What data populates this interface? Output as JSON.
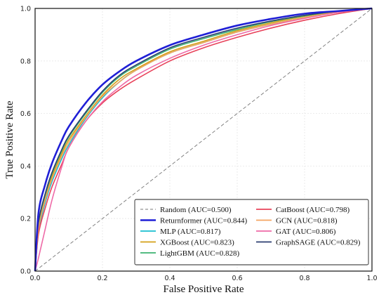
{
  "chart_data": {
    "type": "line",
    "xlabel": "False Positive Rate",
    "ylabel": "True Positive Rate",
    "xlim": [
      0,
      1
    ],
    "ylim": [
      0,
      1
    ],
    "xticks": [
      "0.0",
      "0.2",
      "0.4",
      "0.6",
      "0.8",
      "1.0"
    ],
    "yticks": [
      "0.0",
      "0.2",
      "0.4",
      "0.6",
      "0.8",
      "1.0"
    ],
    "grid": true,
    "legend_position": "bottom-right",
    "series": [
      {
        "name": "Random (AUC=0.500)",
        "color": "#777777",
        "style": "dashed",
        "x": [
          0,
          1
        ],
        "y": [
          0,
          1
        ]
      },
      {
        "name": "Returnformer (AUC=0.844)",
        "color": "#1f1fd6",
        "style": "solid-thick",
        "x": [
          0,
          0.01,
          0.03,
          0.05,
          0.08,
          0.1,
          0.15,
          0.2,
          0.25,
          0.3,
          0.4,
          0.5,
          0.6,
          0.7,
          0.8,
          0.9,
          1.0
        ],
        "y": [
          0,
          0.22,
          0.33,
          0.41,
          0.5,
          0.55,
          0.64,
          0.71,
          0.76,
          0.8,
          0.86,
          0.9,
          0.935,
          0.96,
          0.98,
          0.99,
          1.0
        ]
      },
      {
        "name": "MLP (AUC=0.817)",
        "color": "#17becf",
        "style": "solid",
        "x": [
          0,
          0.01,
          0.03,
          0.05,
          0.08,
          0.1,
          0.15,
          0.2,
          0.25,
          0.3,
          0.4,
          0.5,
          0.6,
          0.7,
          0.8,
          0.9,
          1.0
        ],
        "y": [
          0,
          0.15,
          0.26,
          0.34,
          0.43,
          0.48,
          0.58,
          0.66,
          0.72,
          0.765,
          0.83,
          0.87,
          0.91,
          0.94,
          0.965,
          0.985,
          1.0
        ]
      },
      {
        "name": "XGBoost (AUC=0.823)",
        "color": "#d4a017",
        "style": "solid",
        "x": [
          0,
          0.01,
          0.03,
          0.05,
          0.08,
          0.1,
          0.15,
          0.2,
          0.25,
          0.3,
          0.4,
          0.5,
          0.6,
          0.7,
          0.8,
          0.9,
          1.0
        ],
        "y": [
          0,
          0.17,
          0.28,
          0.36,
          0.45,
          0.5,
          0.59,
          0.67,
          0.73,
          0.77,
          0.835,
          0.875,
          0.915,
          0.945,
          0.97,
          0.988,
          1.0
        ]
      },
      {
        "name": "LightGBM (AUC=0.828)",
        "color": "#3cb371",
        "style": "solid",
        "x": [
          0,
          0.01,
          0.03,
          0.05,
          0.08,
          0.1,
          0.15,
          0.2,
          0.25,
          0.3,
          0.4,
          0.5,
          0.6,
          0.7,
          0.8,
          0.9,
          1.0
        ],
        "y": [
          0,
          0.18,
          0.29,
          0.37,
          0.46,
          0.51,
          0.6,
          0.68,
          0.74,
          0.78,
          0.845,
          0.885,
          0.92,
          0.95,
          0.972,
          0.99,
          1.0
        ]
      },
      {
        "name": "CatBoost (AUC=0.798)",
        "color": "#e8425a",
        "style": "solid",
        "x": [
          0,
          0.01,
          0.03,
          0.05,
          0.08,
          0.1,
          0.15,
          0.2,
          0.25,
          0.3,
          0.4,
          0.5,
          0.6,
          0.7,
          0.8,
          0.9,
          1.0
        ],
        "y": [
          0,
          0.14,
          0.24,
          0.32,
          0.41,
          0.47,
          0.57,
          0.64,
          0.69,
          0.73,
          0.8,
          0.85,
          0.89,
          0.925,
          0.955,
          0.98,
          1.0
        ]
      },
      {
        "name": "GCN (AUC=0.818)",
        "color": "#f4a460",
        "style": "solid",
        "x": [
          0,
          0.01,
          0.03,
          0.05,
          0.08,
          0.1,
          0.15,
          0.2,
          0.25,
          0.3,
          0.4,
          0.5,
          0.6,
          0.7,
          0.8,
          0.9,
          1.0
        ],
        "y": [
          0,
          0.16,
          0.27,
          0.35,
          0.44,
          0.49,
          0.585,
          0.665,
          0.72,
          0.765,
          0.83,
          0.87,
          0.91,
          0.94,
          0.965,
          0.985,
          1.0
        ]
      },
      {
        "name": "GAT (AUC=0.806)",
        "color": "#ee6aa7",
        "style": "solid",
        "x": [
          0,
          0.01,
          0.03,
          0.05,
          0.08,
          0.1,
          0.15,
          0.2,
          0.25,
          0.3,
          0.4,
          0.5,
          0.6,
          0.7,
          0.8,
          0.9,
          1.0
        ],
        "y": [
          0,
          0.05,
          0.16,
          0.27,
          0.4,
          0.47,
          0.57,
          0.645,
          0.7,
          0.745,
          0.81,
          0.86,
          0.9,
          0.935,
          0.962,
          0.985,
          1.0
        ]
      },
      {
        "name": "GraphSAGE (AUC=0.829)",
        "color": "#2c3e70",
        "style": "solid",
        "x": [
          0,
          0.01,
          0.03,
          0.05,
          0.08,
          0.1,
          0.15,
          0.2,
          0.25,
          0.3,
          0.4,
          0.5,
          0.6,
          0.7,
          0.8,
          0.9,
          1.0
        ],
        "y": [
          0,
          0.185,
          0.295,
          0.375,
          0.465,
          0.515,
          0.605,
          0.685,
          0.745,
          0.785,
          0.85,
          0.89,
          0.925,
          0.952,
          0.974,
          0.99,
          1.0
        ]
      }
    ]
  }
}
